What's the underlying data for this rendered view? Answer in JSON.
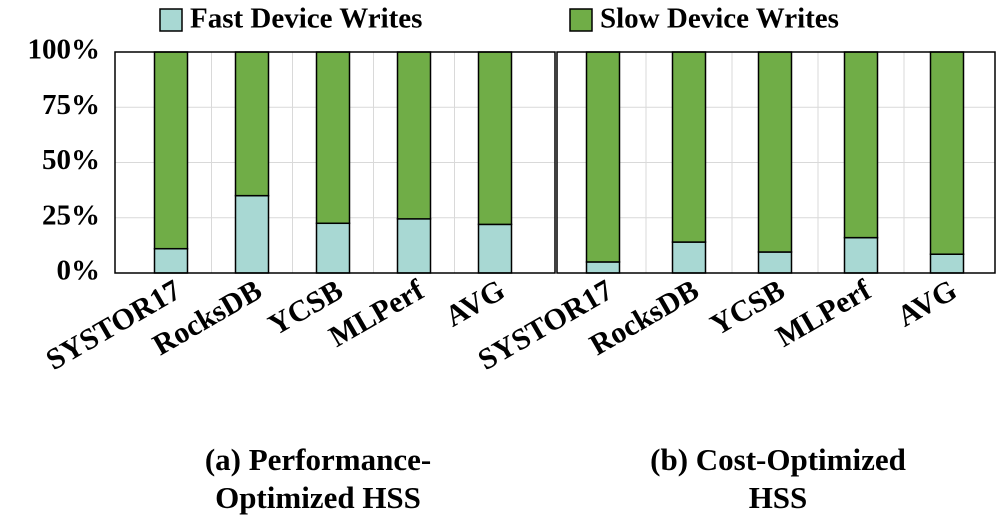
{
  "chart_data": [
    {
      "type": "stacked_bar",
      "title": [
        "(a) Performance-",
        "Optimized HSS"
      ],
      "categories": [
        "SYSTOR17",
        "RocksDB",
        "YCSB",
        "MLPerf",
        "AVG"
      ],
      "series": [
        {
          "name": "Fast Device Writes",
          "color": "#a8d8d3",
          "values": [
            11,
            35,
            22.5,
            24.5,
            22
          ]
        },
        {
          "name": "Slow Device Writes",
          "color": "#70ad47",
          "values": [
            89,
            65,
            77.5,
            75.5,
            78
          ]
        }
      ],
      "ylim": [
        0,
        100
      ],
      "yticks": [
        {
          "value": 0,
          "label": "0%"
        },
        {
          "value": 25,
          "label": "25%"
        },
        {
          "value": 50,
          "label": "50%"
        },
        {
          "value": 75,
          "label": "75%"
        },
        {
          "value": 100,
          "label": "100%"
        }
      ],
      "grid": true
    },
    {
      "type": "stacked_bar",
      "title": [
        "(b) Cost-Optimized",
        "HSS"
      ],
      "categories": [
        "SYSTOR17",
        "RocksDB",
        "YCSB",
        "MLPerf",
        "AVG"
      ],
      "series": [
        {
          "name": "Fast Device Writes",
          "color": "#a8d8d3",
          "values": [
            5,
            14,
            9.5,
            16,
            8.5
          ]
        },
        {
          "name": "Slow Device Writes",
          "color": "#70ad47",
          "values": [
            95,
            86,
            90.5,
            84,
            91.5
          ]
        }
      ],
      "ylim": [
        0,
        100
      ],
      "yticks": [
        {
          "value": 0,
          "label": "0%"
        },
        {
          "value": 25,
          "label": "25%"
        },
        {
          "value": 50,
          "label": "50%"
        },
        {
          "value": 75,
          "label": "75%"
        },
        {
          "value": 100,
          "label": "100%"
        }
      ],
      "grid": true
    }
  ]
}
